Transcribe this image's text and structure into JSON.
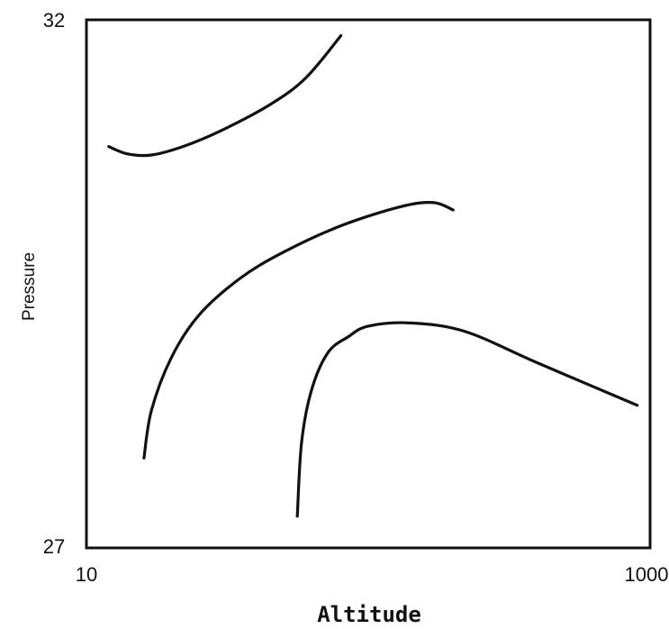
{
  "chart_data": {
    "type": "line",
    "title": "",
    "xlabel": "Altitude",
    "ylabel": "Pressure",
    "x_scale": "log",
    "xlim": [
      10,
      1000
    ],
    "ylim": [
      27,
      32
    ],
    "x_ticks": [
      "10",
      "1000"
    ],
    "y_ticks": [
      "32",
      "27"
    ],
    "grid": false,
    "legend": "none",
    "line_color": "#111111",
    "series": [
      {
        "x": [
          12,
          14,
          17,
          22,
          30,
          45,
          60,
          80
        ],
        "y": [
          30.8,
          30.73,
          30.72,
          30.8,
          30.95,
          31.2,
          31.45,
          31.85
        ]
      },
      {
        "x": [
          16,
          17,
          20,
          25,
          35,
          50,
          80,
          130,
          170,
          200
        ],
        "y": [
          27.85,
          28.3,
          28.8,
          29.2,
          29.55,
          29.8,
          30.05,
          30.23,
          30.27,
          30.2
        ]
      },
      {
        "x": [
          56,
          58,
          63,
          72,
          85,
          100,
          140,
          220,
          400,
          900
        ],
        "y": [
          27.3,
          28.0,
          28.5,
          28.85,
          29.0,
          29.1,
          29.13,
          29.05,
          28.75,
          28.35
        ]
      }
    ]
  }
}
